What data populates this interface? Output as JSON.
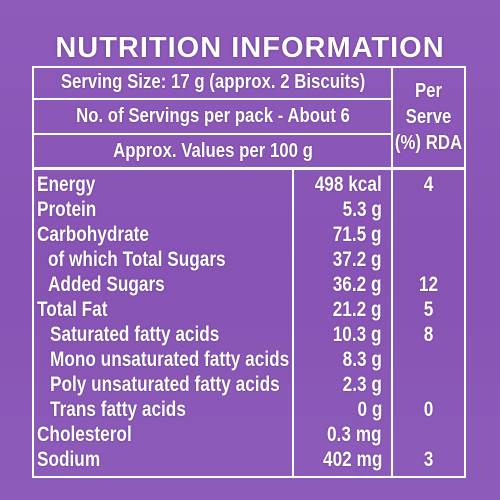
{
  "title": "NUTRITION INFORMATION",
  "header": {
    "serving_size": "Serving Size: 17 g (approx. 2 Biscuits)",
    "servings_per_pack": "No. of Servings per pack - About 6",
    "approx_values": "Approx. Values per 100 g",
    "per_serve_line1": "Per",
    "per_serve_line2": "Serve",
    "per_serve_line3": "(%) RDA"
  },
  "rows": [
    {
      "label": "Energy",
      "value": "498 kcal",
      "rda": "4"
    },
    {
      "label": "Protein",
      "value": "5.3 g",
      "rda": ""
    },
    {
      "label": "Carbohydrate",
      "value": "71.5 g",
      "rda": ""
    },
    {
      "label": "of which Total Sugars",
      "value": "37.2 g",
      "rda": ""
    },
    {
      "label": "Added Sugars",
      "value": "36.2 g",
      "rda": "12"
    },
    {
      "label": "Total Fat",
      "value": "21.2 g",
      "rda": "5"
    },
    {
      "label": "Saturated fatty acids",
      "value": "10.3 g",
      "rda": "8"
    },
    {
      "label": "Mono unsaturated fatty acids",
      "value": "8.3 g",
      "rda": ""
    },
    {
      "label": "Poly unsaturated fatty acids",
      "value": "2.3 g",
      "rda": ""
    },
    {
      "label": "Trans fatty acids",
      "value": "0 g",
      "rda": "0"
    },
    {
      "label": "Cholesterol",
      "value": "0.3 mg",
      "rda": ""
    },
    {
      "label": "Sodium",
      "value": "402 mg",
      "rda": "3"
    }
  ],
  "colors": {
    "background": "#8a57b6",
    "text": "#ffffff",
    "rules": "#ffffff"
  }
}
